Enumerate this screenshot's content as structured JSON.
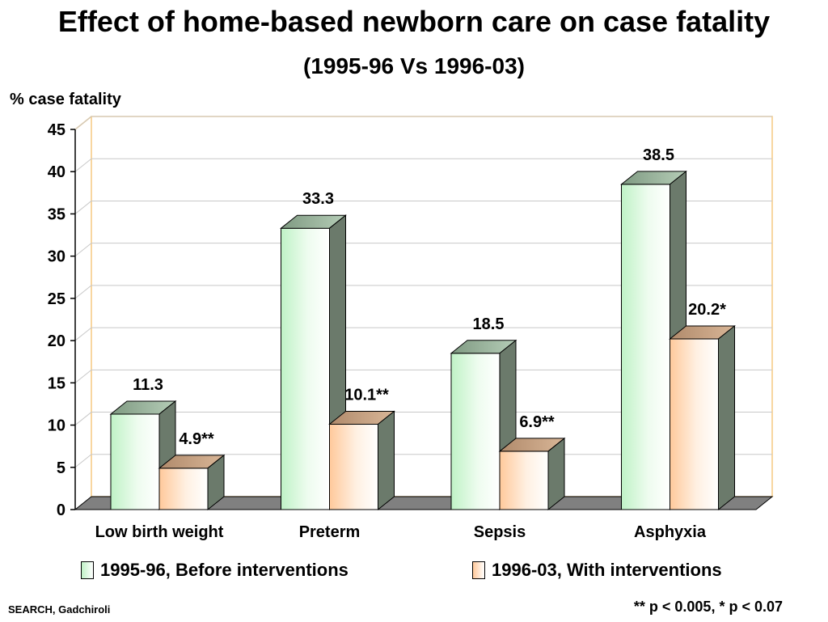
{
  "title": "Effect of home-based newborn care on case fatality",
  "subtitle": "(1995-96 Vs 1996-03)",
  "source": "SEARCH, Gadchiroli",
  "footnote": "** p < 0.005, * p < 0.07",
  "colors": {
    "series1_face": "#bff2c6",
    "series2_face": "#ffc99b",
    "side": "#6b7a6b",
    "floor": "#808080",
    "grid": "#c8c8c8",
    "plot_border": "#f5c880"
  },
  "chart_data": {
    "type": "bar",
    "ylabel": "% case fatality",
    "xlabel": "",
    "ylim": [
      0,
      45
    ],
    "yticks": [
      0,
      5,
      10,
      15,
      20,
      25,
      30,
      35,
      40,
      45
    ],
    "grid": true,
    "legend": "bottom",
    "categories": [
      "Low birth weight",
      "Preterm",
      "Sepsis",
      "Asphyxia"
    ],
    "series": [
      {
        "name": "1995-96, Before interventions",
        "values": [
          11.3,
          33.3,
          18.5,
          38.5
        ],
        "labels": [
          "11.3",
          "33.3",
          "18.5",
          "38.5"
        ]
      },
      {
        "name": "1996-03, With interventions",
        "values": [
          4.9,
          10.1,
          6.9,
          20.2
        ],
        "labels": [
          "4.9**",
          "10.1**",
          "6.9**",
          "20.2*"
        ]
      }
    ]
  }
}
